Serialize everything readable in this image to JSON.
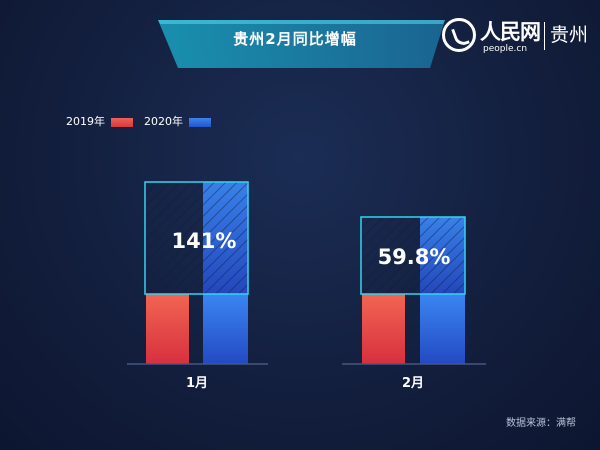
{
  "header": {
    "title": "贵州2月同比增幅"
  },
  "logo": {
    "name": "人民网",
    "site": "people.cn",
    "region": "贵州"
  },
  "source": "数据来源：满帮",
  "colors": {
    "series_2019": "#e8403f",
    "series_2020": "#2e6fe6",
    "highlight_border": "#35d3f0",
    "axis": "#46577f"
  },
  "chart_data": {
    "type": "bar",
    "title": "贵州2月同比增幅",
    "categories": [
      "1月",
      "2月"
    ],
    "series": [
      {
        "name": "2019年",
        "color": "#e8403f"
      },
      {
        "name": "2020年",
        "color": "#2e6fe6"
      }
    ],
    "annotations": [
      "141%",
      "59.8%"
    ],
    "legend": "top-left",
    "grid": false
  }
}
